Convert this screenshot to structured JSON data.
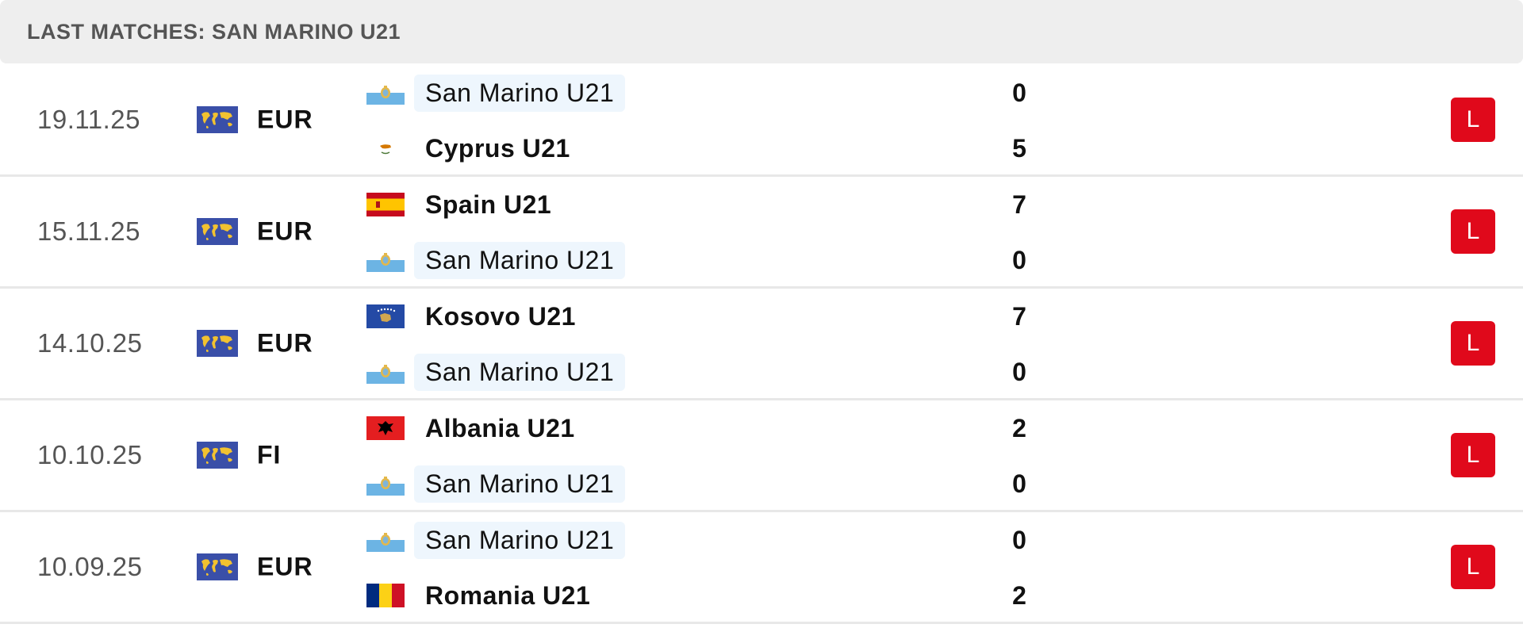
{
  "header": {
    "title": "LAST MATCHES: SAN MARINO U21"
  },
  "colors": {
    "loss_badge": "#e0091b",
    "highlight_bg": "#eef6fd",
    "header_bg": "#eeeeee"
  },
  "matches": [
    {
      "date": "19.11.25",
      "competition": "EUR",
      "competition_icon": "world-map-icon",
      "home": {
        "name": "San Marino U21",
        "flag": "san-marino-flag-icon",
        "score": "0"
      },
      "away": {
        "name": "Cyprus U21",
        "flag": "cyprus-flag-icon",
        "score": "5"
      },
      "result": "L"
    },
    {
      "date": "15.11.25",
      "competition": "EUR",
      "competition_icon": "world-map-icon",
      "home": {
        "name": "Spain U21",
        "flag": "spain-flag-icon",
        "score": "7"
      },
      "away": {
        "name": "San Marino U21",
        "flag": "san-marino-flag-icon",
        "score": "0"
      },
      "result": "L"
    },
    {
      "date": "14.10.25",
      "competition": "EUR",
      "competition_icon": "world-map-icon",
      "home": {
        "name": "Kosovo U21",
        "flag": "kosovo-flag-icon",
        "score": "7"
      },
      "away": {
        "name": "San Marino U21",
        "flag": "san-marino-flag-icon",
        "score": "0"
      },
      "result": "L"
    },
    {
      "date": "10.10.25",
      "competition": "FI",
      "competition_icon": "world-map-icon",
      "home": {
        "name": "Albania U21",
        "flag": "albania-flag-icon",
        "score": "2"
      },
      "away": {
        "name": "San Marino U21",
        "flag": "san-marino-flag-icon",
        "score": "0"
      },
      "result": "L"
    },
    {
      "date": "10.09.25",
      "competition": "EUR",
      "competition_icon": "world-map-icon",
      "home": {
        "name": "San Marino U21",
        "flag": "san-marino-flag-icon",
        "score": "0"
      },
      "away": {
        "name": "Romania U21",
        "flag": "romania-flag-icon",
        "score": "2"
      },
      "result": "L"
    }
  ]
}
